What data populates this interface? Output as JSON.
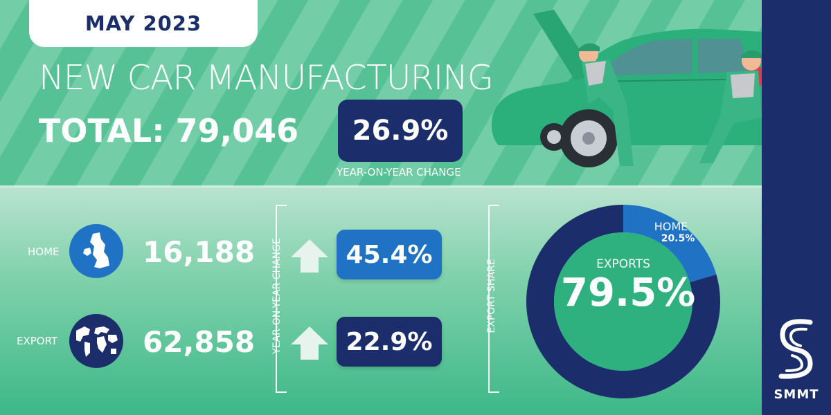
{
  "header": {
    "date": "MAY 2023",
    "title": "NEW CAR MANUFACTURING",
    "total_label": "TOTAL:",
    "total_value": "79,046",
    "yoy_value": "26.9%",
    "yoy_label": "YEAR-ON-YEAR CHANGE"
  },
  "rows": [
    {
      "label": "HOME",
      "icon": "uk-map-icon",
      "value": "16,188",
      "change": "45.4%",
      "change_direction": "up",
      "box_color": "#1f72c4"
    },
    {
      "label": "EXPORT",
      "icon": "globe-icon",
      "value": "62,858",
      "change": "22.9%",
      "change_direction": "up",
      "box_color": "#1b2e6b"
    }
  ],
  "side_labels": {
    "yoy": "YEAR-ON-YEAR CHANGE",
    "export_share": "EXPORT SHARE"
  },
  "chart_data": {
    "type": "pie",
    "categories": [
      "EXPORTS",
      "HOME"
    ],
    "values": [
      79.5,
      20.5
    ],
    "labels": [
      "79.5%",
      "20.5%"
    ],
    "colors": [
      "#1b2e6b",
      "#1f72c4"
    ]
  },
  "brand": {
    "name": "SMMT",
    "colors": {
      "navy": "#1b2e6b",
      "blue": "#1f72c4",
      "green": "#2fb07f"
    }
  }
}
